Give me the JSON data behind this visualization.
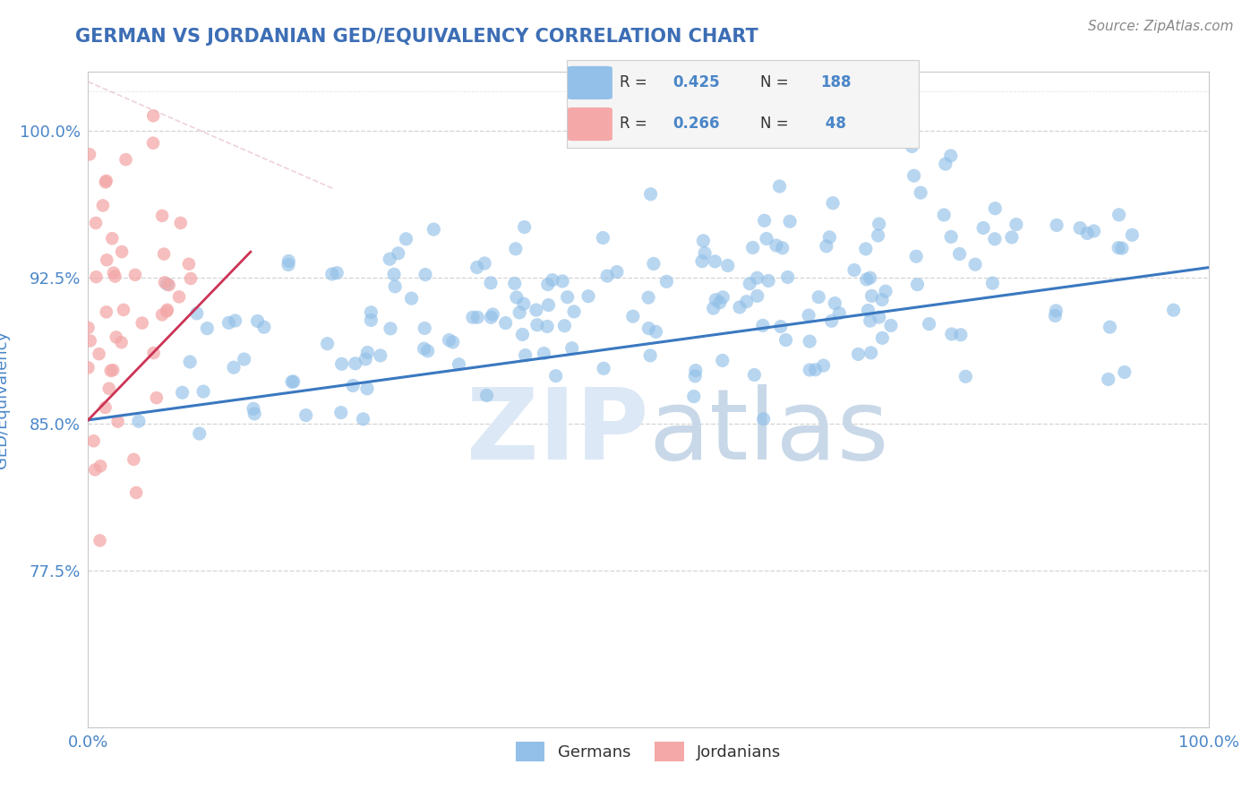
{
  "title": "GERMAN VS JORDANIAN GED/EQUIVALENCY CORRELATION CHART",
  "source_text": "Source: ZipAtlas.com",
  "ylabel": "GED/Equivalency",
  "xlim": [
    0.0,
    1.0
  ],
  "ylim": [
    0.695,
    1.03
  ],
  "yticks": [
    0.775,
    0.85,
    0.925,
    1.0
  ],
  "ytick_labels": [
    "77.5%",
    "85.0%",
    "92.5%",
    "100.0%"
  ],
  "german_R": 0.425,
  "german_N": 188,
  "jordanian_R": 0.266,
  "jordanian_N": 48,
  "blue_color": "#92c0e8",
  "pink_color": "#f4a8a8",
  "blue_line_color": "#3a78c0",
  "pink_line_color": "#cc3355",
  "pink_dash_color": "#f4b8c0",
  "title_color": "#3d6eb5",
  "axis_label_color": "#4a86c8",
  "tick_color": "#4a86c8",
  "watermark_zip_color": "#d8e8f5",
  "watermark_atlas_color": "#d0dce8",
  "background_color": "#ffffff",
  "grid_color": "#d0d0d0",
  "legend_color": "#4a86c8",
  "german_seed": 42,
  "jordanian_seed": 7,
  "blue_marker_size": 120,
  "pink_marker_size": 110
}
